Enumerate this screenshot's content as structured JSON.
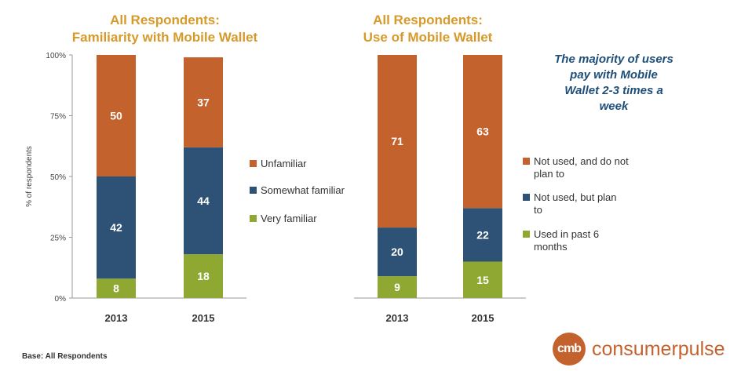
{
  "chart_data": [
    {
      "type": "bar",
      "stacked": true,
      "title_lines": [
        "All Respondents:",
        "Familiarity with Mobile Wallet"
      ],
      "ylabel": "% of respondents",
      "ylim": [
        0,
        100
      ],
      "yticks": [
        "0%",
        "25%",
        "50%",
        "75%",
        "100%"
      ],
      "categories": [
        "2013",
        "2015"
      ],
      "series": [
        {
          "name": "Very familiar",
          "values": [
            8,
            18
          ],
          "color": "#8fa832"
        },
        {
          "name": "Somewhat familiar",
          "values": [
            42,
            44
          ],
          "color": "#2d5275"
        },
        {
          "name": "Unfamiliar",
          "values": [
            50,
            37
          ],
          "color": "#c4622d"
        }
      ],
      "legend_placement": "right",
      "grid": false
    },
    {
      "type": "bar",
      "stacked": true,
      "title_lines": [
        "All Respondents:",
        "Use of Mobile Wallet"
      ],
      "ylim": [
        0,
        100
      ],
      "categories": [
        "2013",
        "2015"
      ],
      "series": [
        {
          "name": "Used in past 6 months",
          "values": [
            9,
            15
          ],
          "color": "#8fa832"
        },
        {
          "name": "Not used, but plan to",
          "values": [
            20,
            22
          ],
          "color": "#2d5275"
        },
        {
          "name": "Not used, and do not plan to",
          "values": [
            71,
            63
          ],
          "color": "#c4622d"
        }
      ],
      "legend_placement": "right",
      "grid": false
    }
  ],
  "callout_lines": [
    "The majority of users",
    "pay with Mobile",
    "Wallet 2-3 times a",
    "week"
  ],
  "footnote": "Base: All Respondents",
  "logo": {
    "mark": "cmb",
    "word": "consumerpulse"
  }
}
